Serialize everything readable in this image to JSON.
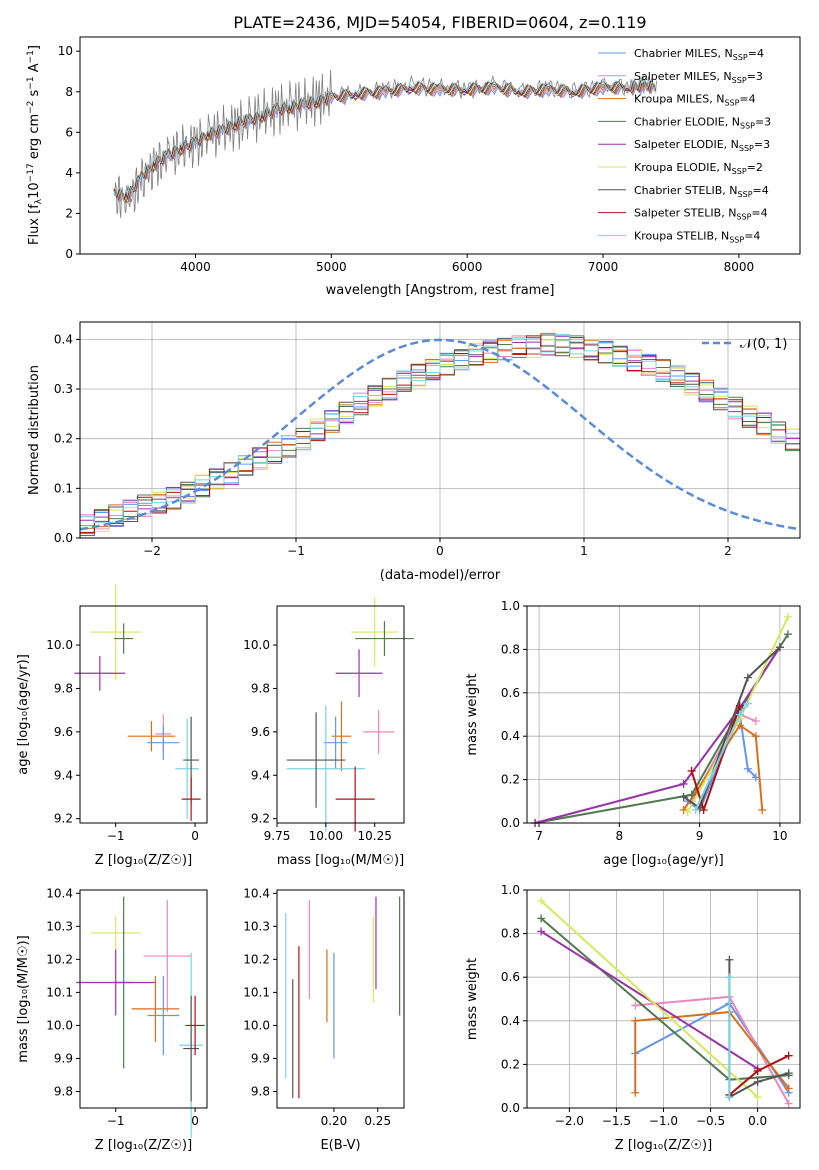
{
  "chart_data": [
    {
      "id": "spectrum",
      "type": "line",
      "title": "PLATE=2436, MJD=54054, FIBERID=0604, z=0.119",
      "xlabel": "wavelength [Angstrom, rest frame]",
      "ylabel_main": "Flux [f",
      "ylabel_sub1": "λ",
      "ylabel_mid": "10",
      "ylabel_sup1": "−17",
      "ylabel_mid2": " erg cm",
      "ylabel_sup2": "−2",
      "ylabel_mid3": " s",
      "ylabel_sup3": "−1",
      "ylabel_mid4": " A",
      "ylabel_sup4": "−1",
      "ylabel_end": "]",
      "xlim": [
        3150,
        8450
      ],
      "ylim": [
        0,
        10.7
      ],
      "xticks": [
        "4000",
        "5000",
        "6000",
        "7000",
        "8000"
      ],
      "yticks": [
        "0",
        "2",
        "4",
        "6",
        "8",
        "10"
      ],
      "grid": false,
      "legend_position": "upper right",
      "observed_color": "#808080",
      "x": [
        3400,
        3500,
        3600,
        3700,
        3800,
        3900,
        4000,
        4100,
        4200,
        4300,
        4400,
        4500,
        4600,
        4700,
        4800,
        4900,
        5000,
        5200,
        5400,
        5600,
        5800,
        6000,
        6200,
        6400,
        6600,
        6800,
        7000,
        7200,
        7300,
        7400
      ],
      "observed": [
        3.0,
        2.5,
        3.6,
        4.3,
        4.8,
        5.2,
        5.4,
        5.8,
        6.1,
        6.3,
        6.6,
        6.9,
        7.1,
        7.3,
        7.4,
        7.6,
        7.8,
        7.9,
        8.1,
        8.3,
        8.2,
        8.1,
        8.3,
        8.0,
        8.2,
        8.0,
        8.3,
        8.2,
        8.4,
        8.2
      ],
      "model": [
        3.0,
        2.8,
        3.8,
        4.4,
        4.9,
        5.2,
        5.5,
        5.9,
        6.1,
        6.4,
        6.6,
        6.8,
        7.1,
        7.2,
        7.4,
        7.5,
        7.7,
        7.9,
        8.0,
        8.2,
        8.1,
        8.1,
        8.2,
        8.0,
        8.1,
        8.0,
        8.2,
        8.2,
        8.3,
        8.2
      ],
      "series": [
        {
          "label": "Chabrier MILES",
          "ssp": "4",
          "color": "#6495ed"
        },
        {
          "label": "Salpeter MILES",
          "ssp": "3",
          "color": "#e887c0"
        },
        {
          "label": "Kroupa MILES",
          "ssp": "4",
          "color": "#d96f1c"
        },
        {
          "label": "Chabrier ELODIE",
          "ssp": "3",
          "color": "#507a50"
        },
        {
          "label": "Salpeter ELODIE",
          "ssp": "3",
          "color": "#9932a8"
        },
        {
          "label": "Kroupa ELODIE",
          "ssp": "2",
          "color": "#d6e860"
        },
        {
          "label": "Chabrier STELIB",
          "ssp": "4",
          "color": "#555555"
        },
        {
          "label": "Salpeter STELIB",
          "ssp": "4",
          "color": "#b01010"
        },
        {
          "label": "Kroupa STELIB",
          "ssp": "4",
          "color": "#79d4e0"
        }
      ],
      "legend_nssp_prefix": "N",
      "legend_nssp_sub": "SSP"
    },
    {
      "id": "residuals",
      "type": "bar",
      "xlabel": "(data-model)/error",
      "ylabel": "Normed distribution",
      "xlim": [
        -2.5,
        2.5
      ],
      "ylim": [
        0,
        0.435
      ],
      "xticks": [
        "−2",
        "−1",
        "0",
        "1",
        "2"
      ],
      "yticks": [
        "0.0",
        "0.1",
        "0.2",
        "0.3",
        "0.4"
      ],
      "grid": true,
      "legend_label": "𝒩(0, 1)",
      "legend_position": "upper right",
      "gauss_color": "#5b8bd6",
      "bin_width": 0.1,
      "bins_start": -2.5,
      "hist_values": [
        0.025,
        0.035,
        0.045,
        0.055,
        0.065,
        0.072,
        0.08,
        0.092,
        0.105,
        0.118,
        0.13,
        0.145,
        0.16,
        0.172,
        0.185,
        0.2,
        0.218,
        0.235,
        0.252,
        0.27,
        0.285,
        0.3,
        0.315,
        0.328,
        0.34,
        0.35,
        0.36,
        0.37,
        0.375,
        0.38,
        0.385,
        0.385,
        0.39,
        0.388,
        0.385,
        0.38,
        0.374,
        0.367,
        0.358,
        0.348,
        0.337,
        0.325,
        0.31,
        0.296,
        0.28,
        0.262,
        0.245,
        0.23,
        0.213,
        0.198
      ]
    },
    {
      "id": "age-vs-Z",
      "type": "scatter",
      "xlabel": "Z [log₁₀(Z/Z☉)]",
      "ylabel": "age  [log₁₀(age/yr)]",
      "xlim": [
        -1.45,
        0.15
      ],
      "ylim": [
        9.18,
        10.18
      ],
      "xticks": [
        "−1",
        "0"
      ],
      "yticks": [
        "9.2",
        "9.4",
        "9.6",
        "9.8",
        "10.0"
      ],
      "grid": false,
      "points": [
        {
          "x": -1.0,
          "y": 10.06,
          "xerr": 0.32,
          "yerr": 0.22,
          "c": 5
        },
        {
          "x": -0.9,
          "y": 10.03,
          "xerr": 0.12,
          "yerr": 0.07,
          "c": 3
        },
        {
          "x": -1.2,
          "y": 9.87,
          "xerr": 0.32,
          "yerr": 0.08,
          "c": 4
        },
        {
          "x": -0.55,
          "y": 9.58,
          "xerr": 0.3,
          "yerr": 0.07,
          "c": 2
        },
        {
          "x": -0.4,
          "y": 9.59,
          "xerr": 0.1,
          "yerr": 0.09,
          "c": 1
        },
        {
          "x": -0.4,
          "y": 9.55,
          "xerr": 0.2,
          "yerr": 0.08,
          "c": 0
        },
        {
          "x": -0.1,
          "y": 9.43,
          "xerr": 0.15,
          "yerr": 0.23,
          "c": 8
        },
        {
          "x": -0.05,
          "y": 9.47,
          "xerr": 0.1,
          "yerr": 0.2,
          "c": 6
        },
        {
          "x": -0.05,
          "y": 9.29,
          "xerr": 0.12,
          "yerr": 0.1,
          "c": 7
        }
      ]
    },
    {
      "id": "age-vs-mass",
      "type": "scatter",
      "xlabel": "mass [log₁₀(M/M☉)]",
      "ylabel": "",
      "xlim": [
        9.75,
        10.4
      ],
      "ylim": [
        9.18,
        10.18
      ],
      "xticks": [
        "9.75",
        "10.00",
        "10.25"
      ],
      "yticks": [
        "9.2",
        "9.4",
        "9.6",
        "9.8",
        "10.0"
      ],
      "grid": false,
      "points": [
        {
          "x": 10.25,
          "y": 10.06,
          "xerr": 0.12,
          "yerr": 0.16,
          "c": 5
        },
        {
          "x": 10.3,
          "y": 10.03,
          "xerr": 0.15,
          "yerr": 0.08,
          "c": 3
        },
        {
          "x": 10.17,
          "y": 9.87,
          "xerr": 0.12,
          "yerr": 0.11,
          "c": 4
        },
        {
          "x": 10.27,
          "y": 9.6,
          "xerr": 0.08,
          "yerr": 0.1,
          "c": 1
        },
        {
          "x": 10.08,
          "y": 9.58,
          "xerr": 0.05,
          "yerr": 0.16,
          "c": 2
        },
        {
          "x": 10.05,
          "y": 9.55,
          "xerr": 0.06,
          "yerr": 0.12,
          "c": 0
        },
        {
          "x": 10.0,
          "y": 9.43,
          "xerr": 0.2,
          "yerr": 0.29,
          "c": 8
        },
        {
          "x": 9.95,
          "y": 9.47,
          "xerr": 0.15,
          "yerr": 0.22,
          "c": 6
        },
        {
          "x": 10.15,
          "y": 9.29,
          "xerr": 0.1,
          "yerr": 0.15,
          "c": 7
        }
      ]
    },
    {
      "id": "massweight-vs-age",
      "type": "line",
      "xlabel": "age  [log₁₀(age/yr)]",
      "ylabel": "mass weight",
      "xlim": [
        6.85,
        10.25
      ],
      "ylim": [
        0,
        1.0
      ],
      "xticks": [
        "7",
        "8",
        "9",
        "10"
      ],
      "yticks": [
        "0.0",
        "0.2",
        "0.4",
        "0.6",
        "0.8",
        "1.0"
      ],
      "grid": true,
      "series": [
        {
          "c": 0,
          "x": [
            8.85,
            9.0,
            9.5,
            9.6,
            9.7
          ],
          "y": [
            0.1,
            0.06,
            0.5,
            0.25,
            0.21
          ]
        },
        {
          "c": 1,
          "x": [
            8.9,
            9.5,
            9.7
          ],
          "y": [
            0.1,
            0.5,
            0.47
          ]
        },
        {
          "c": 2,
          "x": [
            8.8,
            8.95,
            9.5,
            9.7,
            9.78
          ],
          "y": [
            0.06,
            0.14,
            0.45,
            0.4,
            0.06
          ]
        },
        {
          "c": 3,
          "x": [
            6.95,
            8.9,
            9.5,
            10.1
          ],
          "y": [
            0.0,
            0.13,
            0.52,
            0.87
          ]
        },
        {
          "c": 4,
          "x": [
            6.95,
            8.8,
            9.5,
            10.0
          ],
          "y": [
            0.0,
            0.18,
            0.53,
            0.81
          ]
        },
        {
          "c": 5,
          "x": [
            8.85,
            9.5,
            10.1
          ],
          "y": [
            0.05,
            0.48,
            0.95
          ]
        },
        {
          "c": 6,
          "x": [
            8.8,
            9.0,
            9.6,
            10.0
          ],
          "y": [
            0.12,
            0.07,
            0.67,
            0.81
          ]
        },
        {
          "c": 7,
          "x": [
            8.9,
            9.05,
            9.5
          ],
          "y": [
            0.24,
            0.06,
            0.54
          ]
        },
        {
          "c": 8,
          "x": [
            8.95,
            9.5,
            9.6
          ],
          "y": [
            0.06,
            0.5,
            0.55
          ]
        }
      ]
    },
    {
      "id": "mass-vs-Z",
      "type": "scatter",
      "xlabel": "Z [log₁₀(Z/Z☉)]",
      "ylabel": "mass [log₁₀(M/M☉)]",
      "xlim": [
        -1.45,
        0.15
      ],
      "ylim": [
        9.75,
        10.41
      ],
      "xticks": [
        "−1",
        "0"
      ],
      "yticks": [
        "9.8",
        "9.9",
        "10.0",
        "10.1",
        "10.2",
        "10.3",
        "10.4"
      ],
      "grid": false,
      "points": [
        {
          "x": -1.0,
          "y": 10.28,
          "xerr": 0.32,
          "yerr": 0.05,
          "c": 5
        },
        {
          "x": -0.9,
          "y": 10.13,
          "xerr": 0.12,
          "yerr": 0.26,
          "c": 3
        },
        {
          "x": -1.0,
          "y": 10.13,
          "xerr": 0.5,
          "yerr": 0.1,
          "c": 4
        },
        {
          "x": -0.35,
          "y": 10.21,
          "xerr": 0.3,
          "yerr": 0.17,
          "c": 1
        },
        {
          "x": -0.5,
          "y": 10.05,
          "xerr": 0.3,
          "yerr": 0.1,
          "c": 2
        },
        {
          "x": -0.4,
          "y": 10.03,
          "xerr": 0.2,
          "yerr": 0.12,
          "c": 0
        },
        {
          "x": -0.05,
          "y": 9.94,
          "xerr": 0.15,
          "yerr": 0.28,
          "c": 8
        },
        {
          "x": -0.05,
          "y": 9.93,
          "xerr": 0.1,
          "yerr": 0.16,
          "c": 6
        },
        {
          "x": 0.0,
          "y": 10.0,
          "xerr": 0.12,
          "yerr": 0.09,
          "c": 7
        }
      ]
    },
    {
      "id": "mass-vs-EBV",
      "type": "scatter",
      "xlabel": "E(B-V)",
      "ylabel": "",
      "xlim": [
        0.135,
        0.28
      ],
      "ylim": [
        9.75,
        10.41
      ],
      "xticks": [
        "0.20",
        "0.25"
      ],
      "yticks": [
        "9.8",
        "9.9",
        "10.0",
        "10.1",
        "10.2",
        "10.3",
        "10.4"
      ],
      "grid": false,
      "points": [
        {
          "x": 0.245,
          "y": 10.2,
          "xerr": 0,
          "yerr": 0.13,
          "c": 5
        },
        {
          "x": 0.275,
          "y": 10.21,
          "xerr": 0,
          "yerr": 0.18,
          "c": 3
        },
        {
          "x": 0.248,
          "y": 10.25,
          "xerr": 0,
          "yerr": 0.14,
          "c": 4
        },
        {
          "x": 0.172,
          "y": 10.23,
          "xerr": 0,
          "yerr": 0.15,
          "c": 1
        },
        {
          "x": 0.192,
          "y": 10.12,
          "xerr": 0,
          "yerr": 0.11,
          "c": 2
        },
        {
          "x": 0.2,
          "y": 10.06,
          "xerr": 0,
          "yerr": 0.16,
          "c": 0
        },
        {
          "x": 0.145,
          "y": 10.09,
          "xerr": 0,
          "yerr": 0.25,
          "c": 8
        },
        {
          "x": 0.153,
          "y": 9.96,
          "xerr": 0,
          "yerr": 0.18,
          "c": 6
        },
        {
          "x": 0.16,
          "y": 10.01,
          "xerr": 0,
          "yerr": 0.23,
          "c": 7
        }
      ]
    },
    {
      "id": "massweight-vs-Z",
      "type": "line",
      "xlabel": "Z [log₁₀(Z/Z☉)]",
      "ylabel": "mass weight",
      "xlim": [
        -2.45,
        0.45
      ],
      "ylim": [
        0,
        1.0
      ],
      "xticks": [
        "−2.0",
        "−1.5",
        "−1.0",
        "−0.5",
        "0.0"
      ],
      "yticks": [
        "0.0",
        "0.2",
        "0.4",
        "0.6",
        "0.8",
        "1.0"
      ],
      "grid": true,
      "series": [
        {
          "c": 0,
          "x": [
            -1.3,
            -0.3,
            0.33
          ],
          "y": [
            0.25,
            0.48,
            0.07
          ]
        },
        {
          "c": 1,
          "x": [
            -1.3,
            -0.3,
            0.33
          ],
          "y": [
            0.47,
            0.51,
            0.02
          ]
        },
        {
          "c": 2,
          "x": [
            -1.3,
            -1.3,
            -0.3,
            0.33
          ],
          "y": [
            0.07,
            0.4,
            0.44,
            0.09
          ]
        },
        {
          "c": 3,
          "x": [
            -2.3,
            -0.3,
            0.33
          ],
          "y": [
            0.87,
            0.13,
            0.15
          ]
        },
        {
          "c": 4,
          "x": [
            -2.3,
            0.0
          ],
          "y": [
            0.81,
            0.18
          ]
        },
        {
          "c": 5,
          "x": [
            -2.3,
            0.0
          ],
          "y": [
            0.95,
            0.05
          ]
        },
        {
          "c": 6,
          "x": [
            -0.3,
            -0.3,
            0.0,
            0.33
          ],
          "y": [
            0.68,
            0.05,
            0.12,
            0.16
          ]
        },
        {
          "c": 7,
          "x": [
            -0.3,
            0.0,
            0.33
          ],
          "y": [
            0.06,
            0.17,
            0.24
          ]
        },
        {
          "c": 8,
          "x": [
            -0.3,
            -0.3
          ],
          "y": [
            0.6,
            0.05
          ]
        }
      ]
    }
  ]
}
